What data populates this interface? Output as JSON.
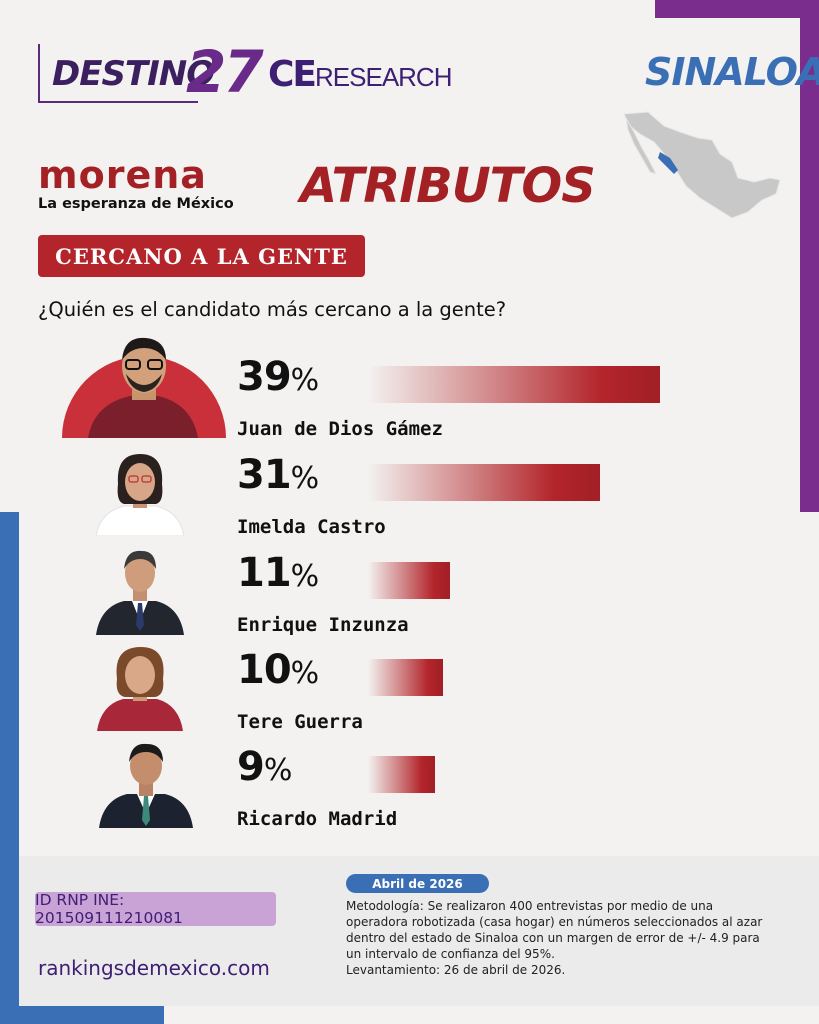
{
  "header": {
    "brand_left_word": "DESTINO",
    "brand_left_num": "27",
    "brand_ce": "CE",
    "brand_research": "RESEARCH",
    "region": "SINALOA"
  },
  "party": {
    "name": "morena",
    "slogan": "La esperanza de México"
  },
  "section_title": "ATRIBUTOS",
  "attribute": "CERCANO A LA GENTE",
  "question": "¿Quién es el candidato más cercano a la gente?",
  "chart_data": {
    "type": "bar",
    "orientation": "horizontal",
    "categories": [
      "Juan de Dios Gámez",
      "Imelda Castro",
      "Enrique Inzunza",
      "Tere Guerra",
      "Ricardo Madrid"
    ],
    "values": [
      39,
      31,
      11,
      10,
      9
    ],
    "value_suffix": "%",
    "colors": {
      "bar": "#b3252b"
    }
  },
  "footer": {
    "rnp": "ID RNP INE: 20150911121 0081",
    "rnp_text": "ID RNP INE: 201509111210081",
    "website": "rankingsdemexico.com",
    "date": "Abril de 2026",
    "methodology": "Metodología: Se realizaron 400 entrevistas por medio de una operadora robotizada (casa hogar) en números seleccionados al azar dentro del estado de Sinaloa con un margen de error de +/- 4.9 para un intervalo de confianza del 95%.",
    "fieldwork": "Levantamiento: 26 de abril de 2026."
  },
  "colors": {
    "purple": "#7b2d8e",
    "blue": "#3a6fb5",
    "red": "#b3252b",
    "lilac": "#c9a2d6"
  }
}
